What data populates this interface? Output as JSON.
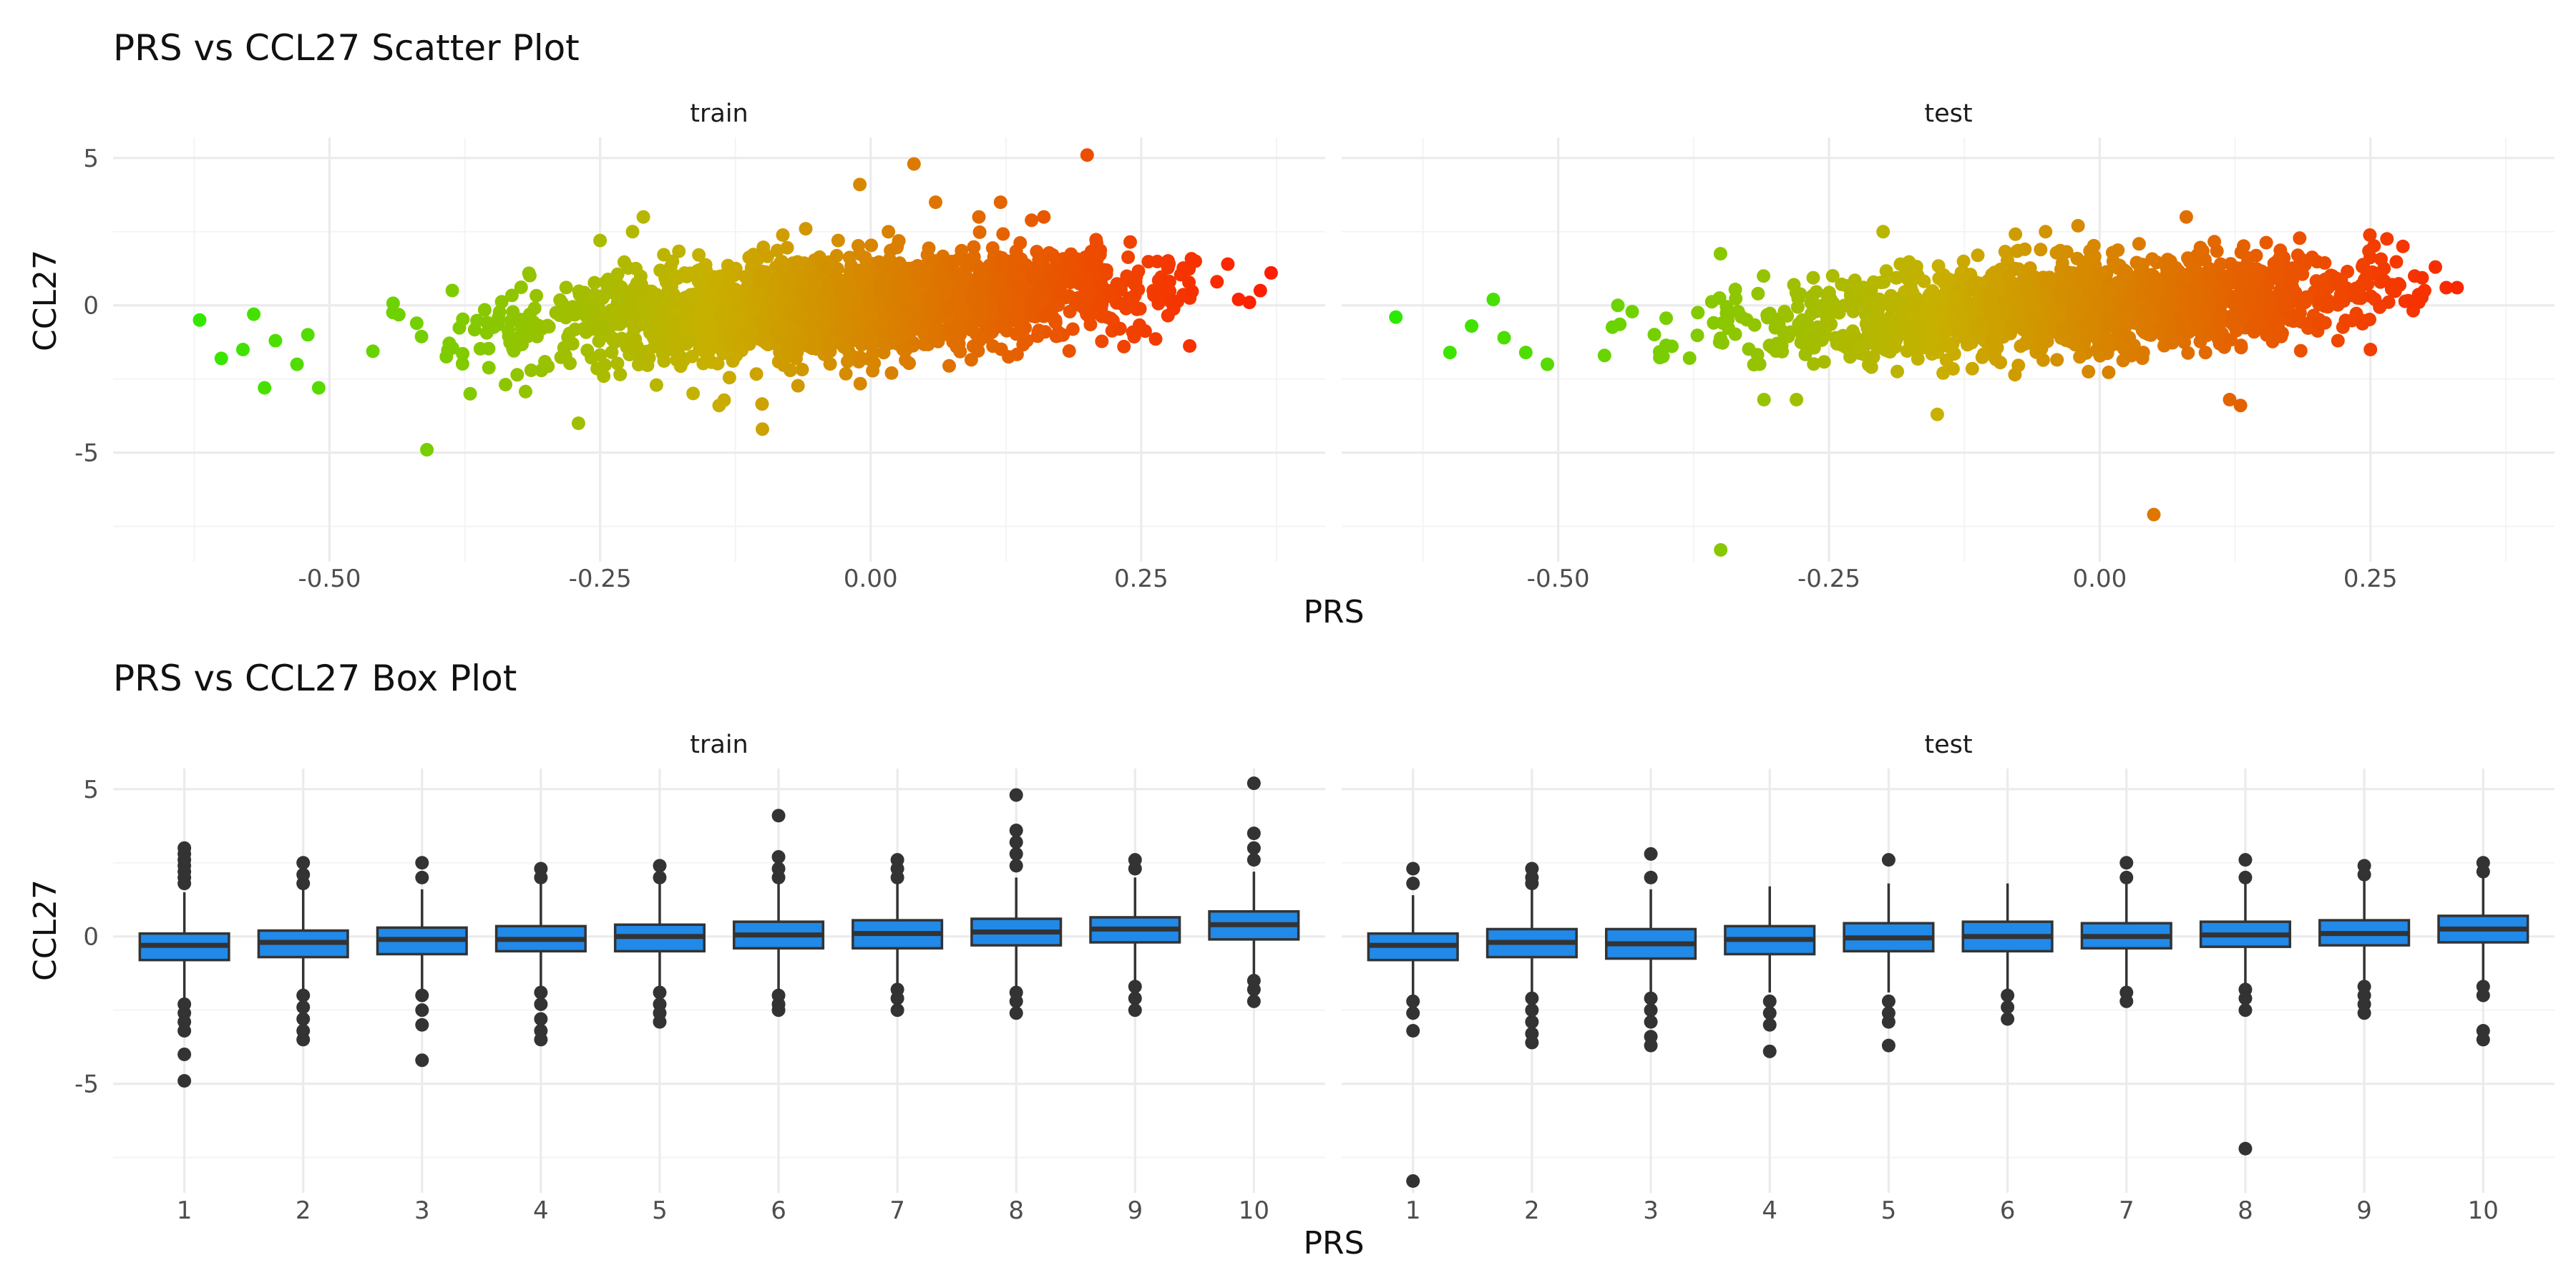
{
  "theme": {
    "low_color": "#22ee00",
    "mid_color": "#c8b000",
    "high_color": "#ff1a00",
    "box_fill": "#2189e8",
    "box_line": "#333333",
    "outlier_color": "#333333"
  },
  "chart_data": [
    {
      "type": "scatter",
      "title": "PRS vs CCL27 Scatter Plot",
      "xlabel": "PRS",
      "ylabel": "CCL27",
      "xlim": [
        -0.7,
        0.42
      ],
      "ylim": [
        -8.7,
        5.7
      ],
      "xticks": [
        -0.5,
        -0.25,
        0.0,
        0.25
      ],
      "xtick_labels": [
        "-0.50",
        "-0.25",
        "0.00",
        "0.25"
      ],
      "yticks": [
        -5,
        0,
        5
      ],
      "ytick_labels": [
        "-5",
        "0",
        "5"
      ],
      "color_by": "x",
      "color_range": [
        -0.68,
        0.38
      ],
      "grid": true,
      "legend": "none",
      "facets": [
        {
          "label": "train",
          "cloud": {
            "x_mean": -0.02,
            "x_sd": 0.14,
            "x_range": [
              -0.5,
              0.3
            ],
            "slope": 2.1,
            "y_sd": 0.78,
            "count": 2200
          },
          "points": [
            [
              -0.62,
              -0.5
            ],
            [
              -0.6,
              -1.8
            ],
            [
              -0.58,
              -1.5
            ],
            [
              -0.57,
              -0.3
            ],
            [
              -0.56,
              -2.8
            ],
            [
              -0.55,
              -1.2
            ],
            [
              -0.53,
              -2.0
            ],
            [
              -0.52,
              -1.0
            ],
            [
              -0.51,
              -2.8
            ],
            [
              -0.41,
              -4.9
            ],
            [
              -0.37,
              -3.0
            ],
            [
              -0.27,
              -4.0
            ],
            [
              -0.25,
              2.2
            ],
            [
              -0.22,
              2.5
            ],
            [
              -0.21,
              3.0
            ],
            [
              -0.14,
              -3.4
            ],
            [
              -0.1,
              -4.2
            ],
            [
              -0.06,
              2.6
            ],
            [
              -0.03,
              2.2
            ],
            [
              -0.01,
              4.1
            ],
            [
              0.04,
              4.8
            ],
            [
              0.06,
              3.5
            ],
            [
              0.1,
              3.0
            ],
            [
              0.12,
              3.5
            ],
            [
              0.16,
              3.0
            ],
            [
              0.2,
              5.1
            ],
            [
              0.23,
              -0.8
            ],
            [
              0.3,
              1.5
            ],
            [
              0.32,
              0.8
            ],
            [
              0.33,
              1.4
            ],
            [
              0.34,
              0.2
            ],
            [
              0.36,
              0.5
            ],
            [
              0.37,
              1.1
            ],
            [
              0.35,
              0.1
            ]
          ]
        },
        {
          "label": "test",
          "cloud": {
            "x_mean": -0.02,
            "x_sd": 0.14,
            "x_range": [
              -0.5,
              0.3
            ],
            "slope": 2.1,
            "y_sd": 0.78,
            "count": 1700
          },
          "points": [
            [
              -0.65,
              -0.4
            ],
            [
              -0.6,
              -1.6
            ],
            [
              -0.58,
              -0.7
            ],
            [
              -0.56,
              0.2
            ],
            [
              -0.55,
              -1.1
            ],
            [
              -0.53,
              -1.6
            ],
            [
              -0.51,
              -2.0
            ],
            [
              -0.35,
              -8.3
            ],
            [
              -0.31,
              -3.2
            ],
            [
              -0.28,
              -3.2
            ],
            [
              -0.2,
              2.5
            ],
            [
              -0.15,
              -3.7
            ],
            [
              -0.05,
              2.5
            ],
            [
              -0.02,
              2.7
            ],
            [
              0.05,
              -7.1
            ],
            [
              0.08,
              3.0
            ],
            [
              0.12,
              -3.2
            ],
            [
              0.13,
              -3.4
            ],
            [
              0.19,
              1.5
            ],
            [
              0.25,
              -1.5
            ],
            [
              0.27,
              0.7
            ],
            [
              0.28,
              2.0
            ],
            [
              0.3,
              0.5
            ],
            [
              0.31,
              1.3
            ],
            [
              0.32,
              0.6
            ],
            [
              0.33,
              0.6
            ],
            [
              0.22,
              -1.2
            ]
          ]
        }
      ]
    },
    {
      "type": "box",
      "title": "PRS vs CCL27 Box Plot",
      "xlabel": "PRS",
      "ylabel": "CCL27",
      "categories": [
        "1",
        "2",
        "3",
        "4",
        "5",
        "6",
        "7",
        "8",
        "9",
        "10"
      ],
      "ylim": [
        -8.7,
        5.7
      ],
      "yticks": [
        -5,
        0,
        5
      ],
      "ytick_labels": [
        "-5",
        "0",
        "5"
      ],
      "grid": true,
      "facets": [
        {
          "label": "train",
          "boxes": [
            {
              "q1": -0.8,
              "median": -0.3,
              "q3": 0.1,
              "whisker_low": -2.1,
              "whisker_high": 1.5,
              "outliers": [
                3.0,
                2.8,
                2.6,
                2.4,
                2.2,
                2.0,
                1.8,
                -2.3,
                -2.6,
                -2.9,
                -3.2,
                -4.0,
                -4.9
              ]
            },
            {
              "q1": -0.7,
              "median": -0.2,
              "q3": 0.2,
              "whisker_low": -1.9,
              "whisker_high": 1.6,
              "outliers": [
                2.5,
                2.1,
                1.8,
                -2.0,
                -2.4,
                -2.8,
                -3.2,
                -3.5
              ]
            },
            {
              "q1": -0.6,
              "median": -0.1,
              "q3": 0.3,
              "whisker_low": -1.9,
              "whisker_high": 1.6,
              "outliers": [
                2.5,
                2.0,
                -2.0,
                -2.5,
                -3.0,
                -4.2
              ]
            },
            {
              "q1": -0.5,
              "median": -0.1,
              "q3": 0.35,
              "whisker_low": -1.8,
              "whisker_high": 1.8,
              "outliers": [
                2.3,
                2.0,
                -1.9,
                -2.3,
                -2.8,
                -3.2,
                -3.5
              ]
            },
            {
              "q1": -0.5,
              "median": 0.0,
              "q3": 0.4,
              "whisker_low": -1.8,
              "whisker_high": 1.8,
              "outliers": [
                2.4,
                2.0,
                -1.9,
                -2.3,
                -2.6,
                -2.9
              ]
            },
            {
              "q1": -0.4,
              "median": 0.05,
              "q3": 0.5,
              "whisker_low": -1.8,
              "whisker_high": 1.9,
              "outliers": [
                4.1,
                2.7,
                2.3,
                2.0,
                -2.0,
                -2.3,
                -2.5
              ]
            },
            {
              "q1": -0.4,
              "median": 0.1,
              "q3": 0.55,
              "whisker_low": -1.7,
              "whisker_high": 1.9,
              "outliers": [
                2.6,
                2.3,
                2.0,
                -1.8,
                -2.1,
                -2.5
              ]
            },
            {
              "q1": -0.3,
              "median": 0.15,
              "q3": 0.6,
              "whisker_low": -1.7,
              "whisker_high": 2.0,
              "outliers": [
                4.8,
                3.6,
                3.2,
                2.8,
                2.4,
                -1.9,
                -2.2,
                -2.6
              ]
            },
            {
              "q1": -0.2,
              "median": 0.25,
              "q3": 0.65,
              "whisker_low": -1.5,
              "whisker_high": 2.0,
              "outliers": [
                2.6,
                2.3,
                -1.7,
                -2.1,
                -2.5
              ]
            },
            {
              "q1": -0.1,
              "median": 0.4,
              "q3": 0.85,
              "whisker_low": -1.3,
              "whisker_high": 2.2,
              "outliers": [
                5.2,
                3.5,
                3.0,
                2.6,
                -1.5,
                -1.8,
                -2.2
              ]
            }
          ]
        },
        {
          "label": "test",
          "boxes": [
            {
              "q1": -0.8,
              "median": -0.3,
              "q3": 0.1,
              "whisker_low": -2.1,
              "whisker_high": 1.4,
              "outliers": [
                2.3,
                1.8,
                -2.2,
                -2.6,
                -3.2,
                -8.3
              ]
            },
            {
              "q1": -0.7,
              "median": -0.2,
              "q3": 0.25,
              "whisker_low": -1.9,
              "whisker_high": 1.6,
              "outliers": [
                2.3,
                2.0,
                1.8,
                -2.1,
                -2.5,
                -2.9,
                -3.3,
                -3.6
              ]
            },
            {
              "q1": -0.75,
              "median": -0.25,
              "q3": 0.25,
              "whisker_low": -1.9,
              "whisker_high": 1.6,
              "outliers": [
                2.8,
                2.0,
                -2.1,
                -2.5,
                -2.9,
                -3.4,
                -3.7
              ]
            },
            {
              "q1": -0.6,
              "median": -0.1,
              "q3": 0.35,
              "whisker_low": -1.9,
              "whisker_high": 1.7,
              "outliers": [
                -2.2,
                -2.6,
                -3.0,
                -3.9
              ]
            },
            {
              "q1": -0.5,
              "median": -0.05,
              "q3": 0.45,
              "whisker_low": -1.9,
              "whisker_high": 1.8,
              "outliers": [
                2.6,
                -2.2,
                -2.6,
                -2.9,
                -3.7
              ]
            },
            {
              "q1": -0.5,
              "median": 0.0,
              "q3": 0.5,
              "whisker_low": -1.9,
              "whisker_high": 1.8,
              "outliers": [
                -2.0,
                -2.4,
                -2.8
              ]
            },
            {
              "q1": -0.4,
              "median": 0.0,
              "q3": 0.45,
              "whisker_low": -1.7,
              "whisker_high": 1.8,
              "outliers": [
                2.5,
                2.0,
                -1.9,
                -2.2
              ]
            },
            {
              "q1": -0.35,
              "median": 0.05,
              "q3": 0.5,
              "whisker_low": -1.7,
              "whisker_high": 1.9,
              "outliers": [
                2.6,
                2.0,
                -1.8,
                -2.1,
                -2.5,
                -7.2
              ]
            },
            {
              "q1": -0.3,
              "median": 0.1,
              "q3": 0.55,
              "whisker_low": -1.6,
              "whisker_high": 1.9,
              "outliers": [
                2.4,
                2.1,
                -1.7,
                -2.0,
                -2.3,
                -2.6
              ]
            },
            {
              "q1": -0.2,
              "median": 0.25,
              "q3": 0.7,
              "whisker_low": -1.5,
              "whisker_high": 2.0,
              "outliers": [
                2.5,
                2.2,
                -1.7,
                -2.0,
                -3.2,
                -3.5
              ]
            }
          ]
        }
      ]
    }
  ]
}
